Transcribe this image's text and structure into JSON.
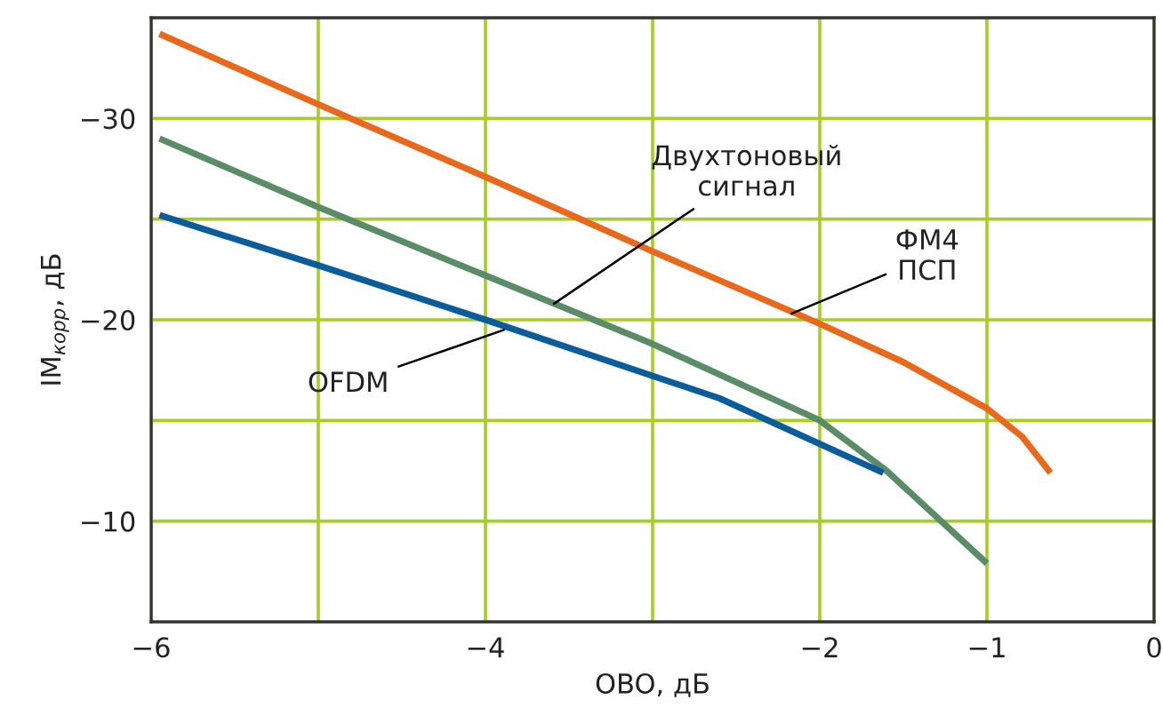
{
  "chart_data": {
    "type": "line",
    "xlabel": "OBO, дБ",
    "ylabel": "IM$_{корр}$, дБ",
    "xlim": [
      -6,
      0
    ],
    "xticks": [
      -6,
      {
        "value": -5,
        "label": null
      },
      -4,
      {
        "value": -3,
        "label": null
      },
      -2,
      -1,
      0
    ],
    "ylim": [
      -5,
      -35
    ],
    "yticks": [
      -30,
      {
        "value": -25,
        "label": null
      },
      -20,
      {
        "value": -15,
        "label": null
      },
      -10
    ],
    "grid": true,
    "legend": false,
    "marker": "none",
    "line_style": "solid",
    "series": [
      {
        "color": "#e8691c",
        "x": [
          -5.95,
          -5,
          -4,
          -3,
          -2,
          -1.5,
          -1,
          -0.79,
          -0.62
        ],
        "values": [
          -34.2,
          -30.7,
          -27.1,
          -23.4,
          -19.8,
          -17.9,
          -15.6,
          -14.2,
          -12.4
        ]
      },
      {
        "color": "#5b8c68",
        "x": [
          -5.95,
          -5,
          -4,
          -3,
          -2,
          -1.6,
          -1
        ],
        "values": [
          -29.0,
          -25.6,
          -22.2,
          -18.8,
          -15.0,
          -12.5,
          -7.9
        ]
      },
      {
        "color": "#0b5c9a",
        "x": [
          -5.95,
          -5,
          -4,
          -2.6,
          -1.62
        ],
        "values": [
          -25.2,
          -22.7,
          -20.0,
          -16.1,
          -12.4
        ]
      }
    ],
    "annotations": [
      {
        "text": "Двухтоновый\nсигнал",
        "x": -3.59,
        "y": -20.8
      },
      {
        "text": "ФМ4\nПСП",
        "x": -2.17,
        "y": -20.3
      },
      {
        "text": "OFDM",
        "x": -3.89,
        "y": -19.5
      }
    ]
  }
}
